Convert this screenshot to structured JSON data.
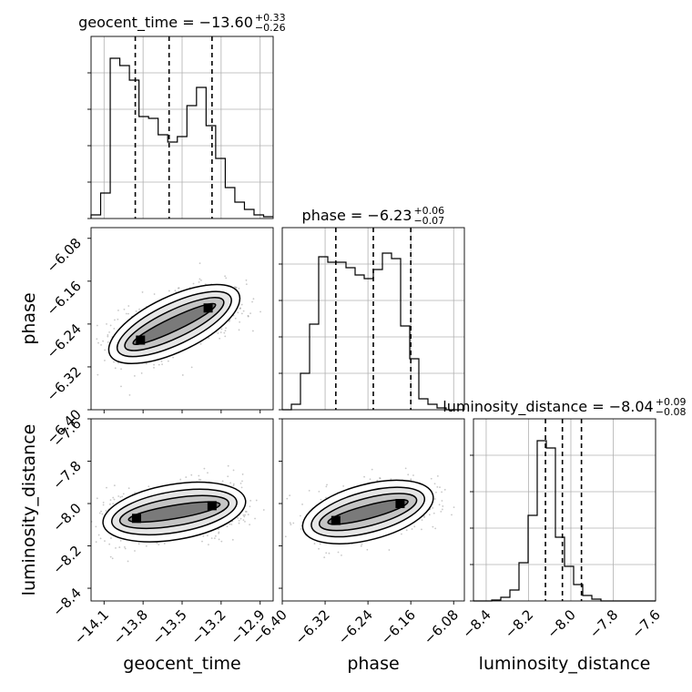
{
  "chart_data": {
    "type": "corner",
    "parameters": [
      "geocent_time",
      "phase",
      "luminosity_distance"
    ],
    "titles": [
      {
        "param": "geocent_time",
        "label": "geocent_time = ",
        "median": "−13.60",
        "plus": "+0.33",
        "minus": "−0.26"
      },
      {
        "param": "phase",
        "label": "phase = ",
        "median": "−6.23",
        "plus": "+0.06",
        "minus": "−0.07"
      },
      {
        "param": "luminosity_distance",
        "label": "luminosity_distance = ",
        "median": "−8.04",
        "plus": "+0.09",
        "minus": "−0.08"
      }
    ],
    "axes": {
      "geocent_time": {
        "range": [
          -14.2,
          -12.8
        ],
        "ticks": [
          -14.1,
          -13.8,
          -13.5,
          -13.2,
          -12.9
        ],
        "tick_labels": [
          "−14.1",
          "−13.8",
          "−13.5",
          "−13.2",
          "−12.9"
        ]
      },
      "phase": {
        "range": [
          -6.4,
          -6.06
        ],
        "ticks": [
          -6.4,
          -6.32,
          -6.24,
          -6.16,
          -6.08
        ],
        "tick_labels": [
          "−6.40",
          "−6.32",
          "−6.24",
          "−6.16",
          "−6.08"
        ]
      },
      "luminosity_distance": {
        "range": [
          -8.46,
          -7.6
        ],
        "ticks": [
          -8.4,
          -8.2,
          -8.0,
          -7.8,
          -7.6
        ],
        "tick_labels": [
          "−8.4",
          "−8.2",
          "−8.0",
          "−7.8",
          "−7.6"
        ]
      }
    },
    "histograms": [
      {
        "param": "geocent_time",
        "bin_edges_start": -14.2,
        "bin_width": 0.0737,
        "counts": [
          0.02,
          0.14,
          0.88,
          0.84,
          0.76,
          0.56,
          0.55,
          0.46,
          0.42,
          0.45,
          0.62,
          0.72,
          0.51,
          0.33,
          0.17,
          0.09,
          0.05,
          0.02,
          0.01
        ],
        "quantiles": [
          -13.86,
          -13.6,
          -13.27
        ]
      },
      {
        "param": "phase",
        "bin_edges_start": -6.4,
        "bin_width": 0.017,
        "counts": [
          0.0,
          0.03,
          0.2,
          0.47,
          0.84,
          0.81,
          0.81,
          0.78,
          0.74,
          0.72,
          0.77,
          0.86,
          0.83,
          0.46,
          0.28,
          0.06,
          0.03,
          0.01,
          0.0,
          0.0
        ],
        "quantiles": [
          -6.3,
          -6.23,
          -6.16
        ]
      },
      {
        "param": "luminosity_distance",
        "bin_edges_start": -8.46,
        "bin_width": 0.043,
        "counts": [
          0.0,
          0.0,
          0.005,
          0.02,
          0.06,
          0.21,
          0.47,
          0.88,
          0.84,
          0.35,
          0.19,
          0.09,
          0.03,
          0.01,
          0.0,
          0.0,
          0.0,
          0.0,
          0.0,
          0.0
        ],
        "quantiles": [
          -8.12,
          -8.04,
          -7.95
        ]
      }
    ],
    "joint_modes": [
      {
        "x": "geocent_time",
        "y": "phase",
        "centers": [
          [
            -13.82,
            -6.27
          ],
          [
            -13.3,
            -6.21
          ]
        ]
      },
      {
        "x": "geocent_time",
        "y": "luminosity_distance",
        "centers": [
          [
            -13.85,
            -8.07
          ],
          [
            -13.27,
            -8.01
          ]
        ]
      },
      {
        "x": "phase",
        "y": "luminosity_distance",
        "centers": [
          [
            -6.3,
            -8.08
          ],
          [
            -6.18,
            -8.0
          ]
        ]
      }
    ],
    "grid": true
  }
}
